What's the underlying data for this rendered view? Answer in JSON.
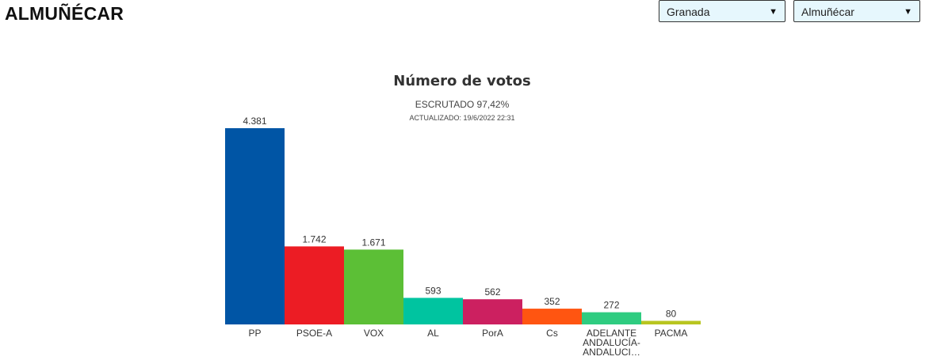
{
  "header": {
    "title": "ALMUÑÉCAR",
    "province_select": {
      "value": "Granada"
    },
    "municipality_select": {
      "value": "Almuñécar"
    }
  },
  "chart_data": {
    "type": "bar",
    "title": "Número de votos",
    "subtitle": "ESCRUTADO 97,42%",
    "updated": "ACTUALIZADO: 19/6/2022 22:31",
    "xlabel": "",
    "ylabel": "",
    "categories": [
      "PP",
      "PSOE-A",
      "VOX",
      "AL",
      "PorA",
      "Cs",
      "ADELANTE ANDALUCÍA-ANDALUCI…",
      "PACMA"
    ],
    "category_labels": [
      [
        "PP"
      ],
      [
        "PSOE-A"
      ],
      [
        "VOX"
      ],
      [
        "AL"
      ],
      [
        "PorA"
      ],
      [
        "Cs"
      ],
      [
        "ADELANTE",
        "ANDALUCÍA-",
        "ANDALUCI…"
      ],
      [
        "PACMA"
      ]
    ],
    "values": [
      4381,
      1742,
      1671,
      593,
      562,
      352,
      272,
      80
    ],
    "value_labels": [
      "4.381",
      "1.742",
      "1.671",
      "593",
      "562",
      "352",
      "272",
      "80"
    ],
    "colors": [
      "#0055a5",
      "#ec1c24",
      "#5cbf36",
      "#00c4a0",
      "#cc2060",
      "#ff5511",
      "#2ecc80",
      "#b8c520"
    ],
    "ylim": [
      0,
      4381
    ]
  }
}
